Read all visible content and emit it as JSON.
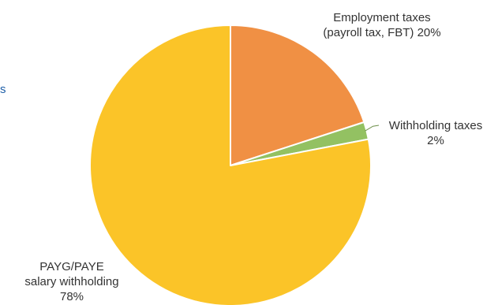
{
  "edge_fragment": "s",
  "chart_data": {
    "type": "pie",
    "title": "",
    "start_angle_deg": 0,
    "direction": "clockwise",
    "slices": [
      {
        "label_lines": [
          "Employment taxes",
          "(payroll tax, FBT) 20%"
        ],
        "value": 20,
        "color": "#f09044"
      },
      {
        "label_lines": [
          "Withholding taxes",
          "2%"
        ],
        "value": 2,
        "color": "#93c162"
      },
      {
        "label_lines": [
          "PAYG/PAYE",
          "salary withholding",
          "78%"
        ],
        "value": 78,
        "color": "#fbc428"
      }
    ],
    "slice_border_color": "#ffffff"
  }
}
